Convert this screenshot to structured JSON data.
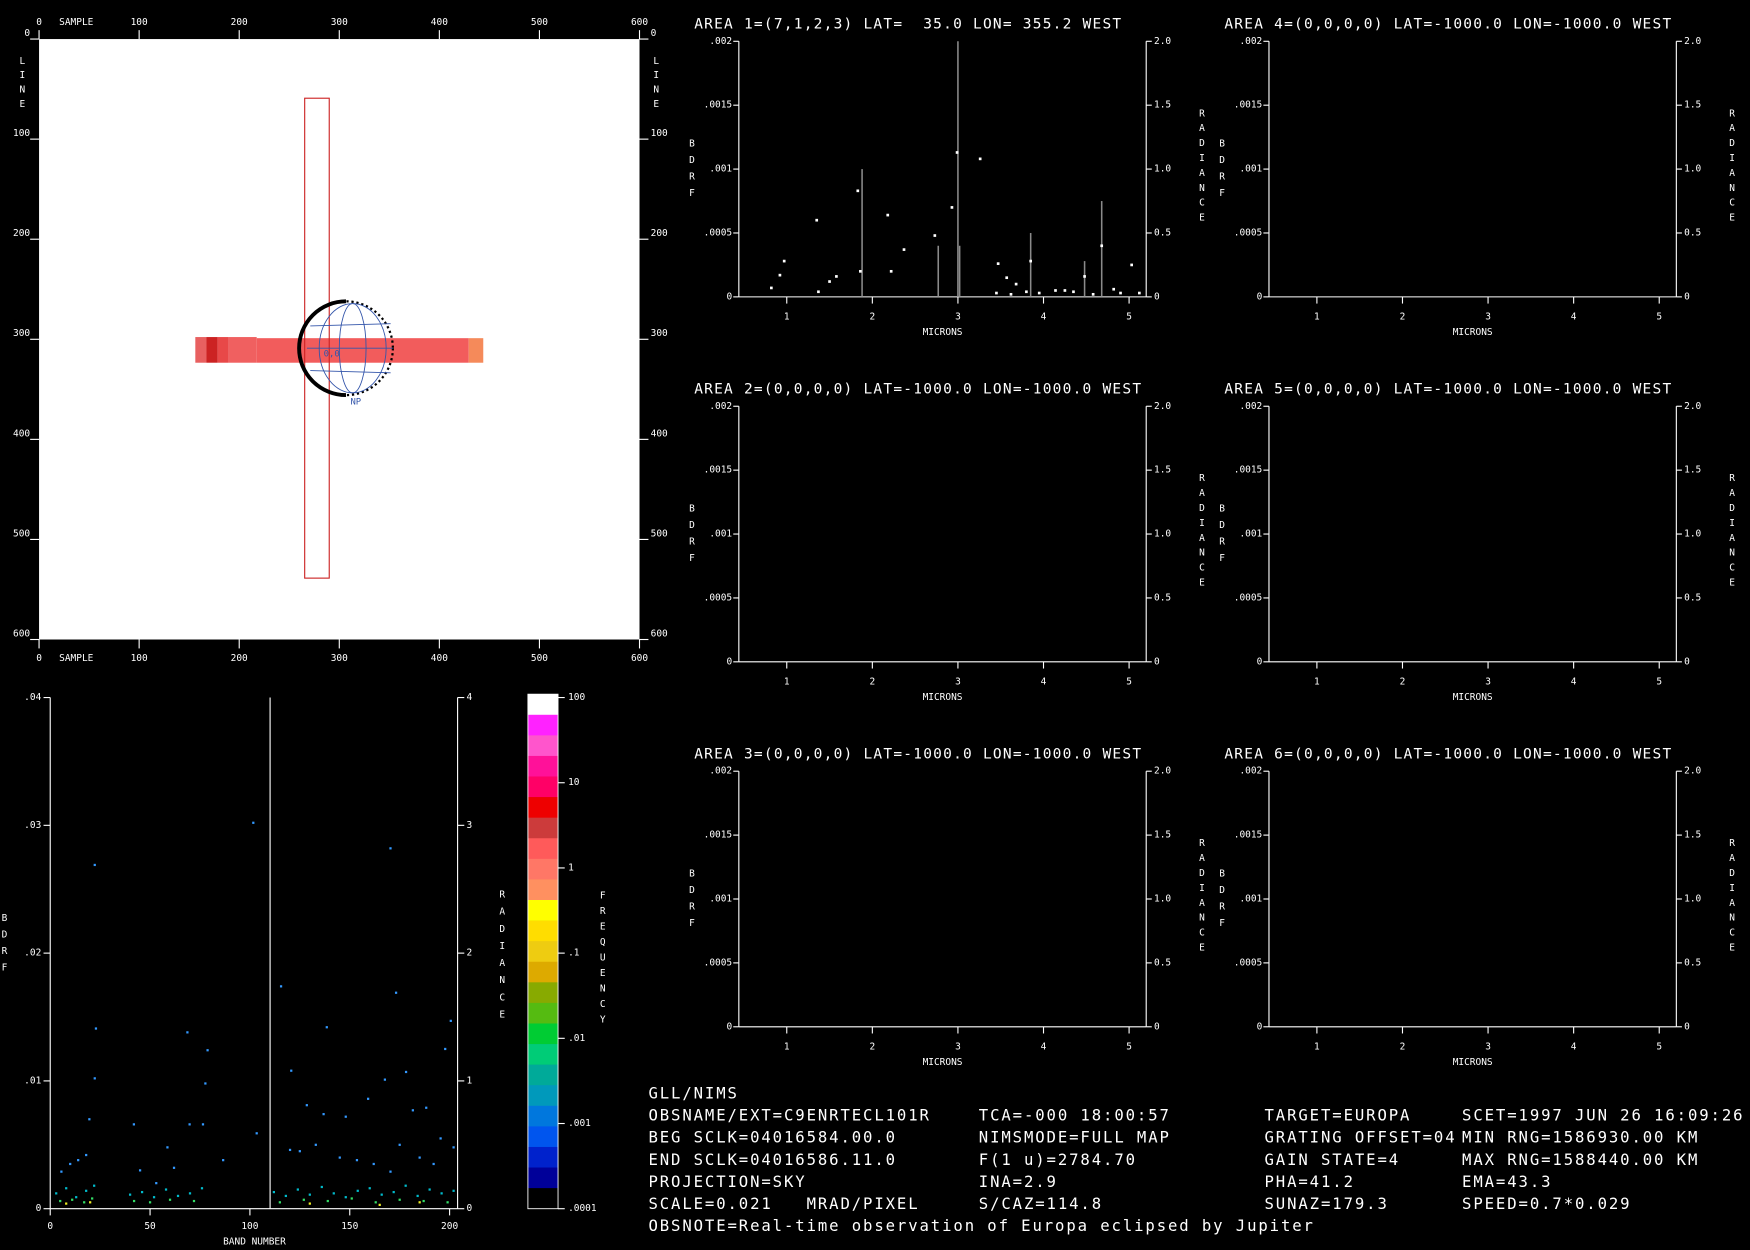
{
  "image_panel": {
    "x_label": "SAMPLE",
    "y_label": "LINE",
    "xlim": [
      0,
      600
    ],
    "ylim": [
      0,
      600
    ],
    "xticks": [
      0,
      100,
      200,
      300,
      400,
      500,
      600
    ],
    "yticks": [
      0,
      100,
      200,
      300,
      400,
      500,
      600
    ],
    "labels": [
      "0,0",
      "NP"
    ]
  },
  "spectrum_axes": {
    "x_label": "MICRONS",
    "y_label": "BDRF",
    "y2_label": "RADIANCE",
    "xlim": [
      0.44,
      5.2
    ],
    "ylim": [
      0,
      0.002
    ],
    "y2lim": [
      0,
      2
    ],
    "xticks": [
      1,
      2,
      3,
      4,
      5
    ],
    "yticks": [
      0,
      {
        "value": 0.0005,
        "label": ".0005"
      },
      {
        "value": 0.001,
        "label": ".001"
      },
      {
        "value": 0.0015,
        "label": ".0015"
      },
      {
        "value": 0.002,
        "label": ".002"
      }
    ],
    "y2ticks": [
      0,
      0.5,
      {
        "value": 1,
        "label": "1.0"
      },
      1.5,
      {
        "value": 2,
        "label": "2.0"
      }
    ]
  },
  "areas": [
    {
      "title": "AREA 1=(7,1,2,3) LAT=  35.0 LON= 355.2 WEST",
      "points": {
        "color": "#ffffff",
        "x": [
          0.82,
          0.92,
          0.97,
          1.35,
          1.37,
          1.5,
          1.58,
          1.83,
          1.86,
          2.18,
          2.22,
          2.37,
          2.73,
          2.93,
          2.99,
          3.26,
          3.47,
          3.57,
          3.68,
          3.85,
          4.14,
          4.48,
          4.68,
          4.9,
          5.03,
          3.45,
          3.62,
          3.8,
          3.95,
          4.25,
          4.35,
          4.58,
          4.82,
          5.12
        ],
        "values": [
          7e-05,
          0.00017,
          0.00028,
          0.0006,
          4e-05,
          0.00012,
          0.00016,
          0.00083,
          0.0002,
          0.00064,
          0.0002,
          0.00037,
          0.00048,
          0.0007,
          0.00113,
          0.00108,
          0.00026,
          0.00015,
          0.0001,
          0.00028,
          5e-05,
          0.00016,
          0.0004,
          3e-05,
          0.00025,
          3e-05,
          2e-05,
          4e-05,
          3e-05,
          5e-05,
          4e-05,
          2e-05,
          6e-05,
          3e-05
        ]
      },
      "lines": {
        "color": "#8a8a8a",
        "x": [
          1.88,
          2.77,
          3.0,
          3.02,
          3.85,
          4.48,
          4.68
        ],
        "values": [
          0.001,
          0.0004,
          0.002,
          0.0004,
          0.0005,
          0.00028,
          0.00075
        ]
      }
    },
    {
      "title": "AREA 2=(0,0,0,0) LAT=-1000.0 LON=-1000.0 WEST"
    },
    {
      "title": "AREA 3=(0,0,0,0) LAT=-1000.0 LON=-1000.0 WEST"
    },
    {
      "title": "AREA 4=(0,0,0,0) LAT=-1000.0 LON=-1000.0 WEST"
    },
    {
      "title": "AREA 5=(0,0,0,0) LAT=-1000.0 LON=-1000.0 WEST"
    },
    {
      "title": "AREA 6=(0,0,0,0) LAT=-1000.0 LON=-1000.0 WEST"
    }
  ],
  "band_plot": {
    "x_label": "BAND NUMBER",
    "y_label": "BDRF",
    "y2_label": "RADIANCE",
    "xlim": [
      0,
      204
    ],
    "ylim": [
      0,
      0.04
    ],
    "y2lim": [
      0,
      4
    ],
    "xticks": [
      0,
      50,
      100,
      150,
      200
    ],
    "yticks": [
      0,
      {
        "value": 0.01,
        "label": ".01"
      },
      {
        "value": 0.02,
        "label": ".02"
      },
      {
        "value": 0.03,
        "label": ".03"
      },
      {
        "value": 0.04,
        "label": ".04"
      }
    ],
    "y2ticks": [
      0,
      1,
      2,
      3,
      4
    ],
    "scatter": [
      {
        "color": "#3399ff",
        "x": [
          22.3,
          22.9,
          22.3,
          101.7,
          170.4,
          173.2,
          115.6,
          68.7,
          78.8,
          77.7,
          138.5,
          200.6,
          178.2,
          120.7,
          167.6,
          197.8,
          19.6,
          5.6,
          14,
          41.9,
          58.7,
          69.8,
          76.5,
          86.6,
          103.4,
          128.5,
          136.9,
          148,
          159.2,
          181.6,
          188.3,
          195.5,
          120.1,
          153.6,
          170.4,
          53.1,
          10,
          18,
          45,
          62,
          125,
          133,
          145,
          162,
          175,
          185,
          192,
          202
        ],
        "values": [
          0.0269,
          0.0141,
          0.0102,
          0.0302,
          0.0282,
          0.0169,
          0.0174,
          0.0138,
          0.0124,
          0.0098,
          0.0142,
          0.0147,
          0.0107,
          0.0108,
          0.0101,
          0.0125,
          0.007,
          0.0029,
          0.0038,
          0.0066,
          0.0048,
          0.0066,
          0.0066,
          0.0038,
          0.0059,
          0.0081,
          0.0074,
          0.0072,
          0.0086,
          0.0077,
          0.0079,
          0.0055,
          0.0046,
          0.0038,
          0.0029,
          0.002,
          0.0035,
          0.0042,
          0.003,
          0.0032,
          0.0045,
          0.005,
          0.004,
          0.0035,
          0.005,
          0.004,
          0.0035,
          0.0048
        ]
      },
      {
        "color": "#00bbcc",
        "x": [
          3,
          8,
          13,
          18,
          22,
          40,
          46,
          52,
          58,
          64,
          70,
          76,
          112,
          118,
          124,
          130,
          136,
          142,
          148,
          154,
          160,
          166,
          172,
          178,
          184,
          190,
          196,
          202
        ],
        "values": [
          0.0012,
          0.0016,
          0.0009,
          0.0014,
          0.0018,
          0.0011,
          0.0013,
          0.0009,
          0.0015,
          0.001,
          0.0012,
          0.0016,
          0.0013,
          0.001,
          0.0015,
          0.0011,
          0.0017,
          0.0012,
          0.0009,
          0.0014,
          0.0016,
          0.0011,
          0.0013,
          0.0018,
          0.001,
          0.0015,
          0.0012,
          0.0014
        ]
      },
      {
        "color": "#33dd66",
        "x": [
          5,
          11,
          17,
          21,
          42,
          50,
          60,
          72,
          115,
          127,
          139,
          151,
          163,
          175,
          187,
          199
        ],
        "values": [
          0.0006,
          0.0007,
          0.0005,
          0.0008,
          0.0006,
          0.0005,
          0.0007,
          0.0006,
          0.0005,
          0.0007,
          0.0006,
          0.0008,
          0.0005,
          0.0007,
          0.0006,
          0.0005
        ]
      },
      {
        "color": "#eeee22",
        "x": [
          8,
          20,
          130,
          165,
          185
        ],
        "values": [
          0.0004,
          0.0005,
          0.0004,
          0.0003,
          0.0005
        ]
      }
    ]
  },
  "colorbar": {
    "label": "FREQUENCY",
    "log": true,
    "lim": [
      0.0001,
      100
    ],
    "ticks": [
      100,
      10,
      1,
      {
        "value": 0.1,
        "label": ".1"
      },
      {
        "value": 0.01,
        "label": ".01"
      },
      {
        "value": 0.001,
        "label": ".001"
      },
      {
        "value": 0.0001,
        "label": ".0001"
      }
    ],
    "colors": [
      "#ffffff",
      "#ff22ff",
      "#ff55cc",
      "#ff1199",
      "#ff0066",
      "#ee0000",
      "#cc3b3b",
      "#ff5a5a",
      "#ff7766",
      "#ff9060",
      "#ffff00",
      "#ffdd00",
      "#eecc11",
      "#ddaa00",
      "#88aa00",
      "#55bb11",
      "#00cc33",
      "#00cc77",
      "#00aa99",
      "#0099bb",
      "#0077dd",
      "#0055ee",
      "#0022cc",
      "#000099",
      "#000000"
    ]
  },
  "info": {
    "header": "GLL/NIMS",
    "rows": [
      [
        "OBSNAME/EXT=C9ENRTECL101R",
        "TCA=-000 18:00:57",
        "TARGET=EUROPA",
        "SCET=1997 JUN 26 16:09:26"
      ],
      [
        "BEG SCLK=04016584.00.0",
        "NIMSMODE=FULL MAP",
        "GRATING OFFSET=04",
        "MIN RNG=1586930.00 KM"
      ],
      [
        "END SCLK=04016586.11.0",
        "F(1 u)=2784.70",
        "GAIN STATE=4",
        "MAX RNG=1588440.00 KM"
      ],
      [
        "PROJECTION=SKY",
        "INA=2.9",
        "PHA=41.2",
        "EMA=43.3"
      ],
      [
        "SCALE=0.021   MRAD/PIXEL",
        "S/CAZ=114.8",
        "SUNAZ=179.3",
        "SPEED=0.7*0.029"
      ]
    ],
    "note": "OBSNOTE=Real-time observation of Europa eclipsed by Jupiter"
  }
}
